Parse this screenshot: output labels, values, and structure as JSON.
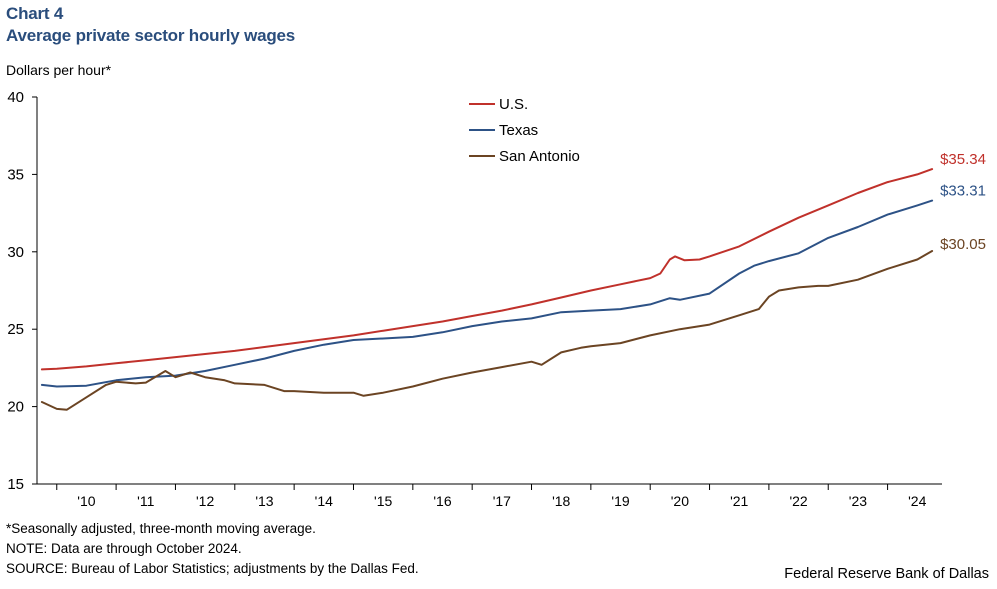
{
  "header": {
    "chart_label": "Chart 4",
    "title": "Average private sector hourly wages",
    "y_unit": "Dollars per hour*"
  },
  "footnotes": {
    "note1": "*Seasonally adjusted, three-month moving average.",
    "note2": "NOTE: Data are through October 2024.",
    "source": "SOURCE: Bureau of Labor Statistics; adjustments by the Dallas Fed."
  },
  "credit": "Federal Reserve Bank of Dallas",
  "colors": {
    "us": "#c0312b",
    "texas": "#2d5286",
    "san_antonio": "#6b4423",
    "axis": "#000000"
  },
  "chart_data": {
    "type": "line",
    "title": "Average private sector hourly wages",
    "xlabel": "",
    "ylabel": "Dollars per hour*",
    "ylim": [
      15,
      40
    ],
    "yticks": [
      15,
      20,
      25,
      30,
      35,
      40
    ],
    "xlim": [
      2009.667,
      2024.917
    ],
    "x_ticks": [
      {
        "label": "'10",
        "at": 2010.5
      },
      {
        "label": "'11",
        "at": 2011.5
      },
      {
        "label": "'12",
        "at": 2012.5
      },
      {
        "label": "'13",
        "at": 2013.5
      },
      {
        "label": "'14",
        "at": 2014.5
      },
      {
        "label": "'15",
        "at": 2015.5
      },
      {
        "label": "'16",
        "at": 2016.5
      },
      {
        "label": "'17",
        "at": 2017.5
      },
      {
        "label": "'18",
        "at": 2018.5
      },
      {
        "label": "'19",
        "at": 2019.5
      },
      {
        "label": "'20",
        "at": 2020.5
      },
      {
        "label": "'21",
        "at": 2021.5
      },
      {
        "label": "'22",
        "at": 2022.5
      },
      {
        "label": "'23",
        "at": 2023.5
      },
      {
        "label": "'24",
        "at": 2024.5
      }
    ],
    "legend": {
      "placement": "top-center"
    },
    "series": [
      {
        "name": "U.S.",
        "color_key": "us",
        "end_label": "$35.34",
        "points": [
          [
            2009.75,
            22.4
          ],
          [
            2010.0,
            22.45
          ],
          [
            2010.5,
            22.6
          ],
          [
            2011.0,
            22.8
          ],
          [
            2011.5,
            23.0
          ],
          [
            2012.0,
            23.2
          ],
          [
            2012.5,
            23.4
          ],
          [
            2013.0,
            23.6
          ],
          [
            2013.5,
            23.85
          ],
          [
            2014.0,
            24.1
          ],
          [
            2014.5,
            24.35
          ],
          [
            2015.0,
            24.6
          ],
          [
            2015.5,
            24.9
          ],
          [
            2016.0,
            25.2
          ],
          [
            2016.5,
            25.5
          ],
          [
            2017.0,
            25.85
          ],
          [
            2017.5,
            26.2
          ],
          [
            2018.0,
            26.6
          ],
          [
            2018.5,
            27.05
          ],
          [
            2019.0,
            27.5
          ],
          [
            2019.5,
            27.9
          ],
          [
            2020.0,
            28.3
          ],
          [
            2020.17,
            28.6
          ],
          [
            2020.33,
            29.5
          ],
          [
            2020.42,
            29.7
          ],
          [
            2020.58,
            29.45
          ],
          [
            2020.83,
            29.5
          ],
          [
            2021.0,
            29.7
          ],
          [
            2021.5,
            30.35
          ],
          [
            2022.0,
            31.3
          ],
          [
            2022.5,
            32.2
          ],
          [
            2023.0,
            33.0
          ],
          [
            2023.5,
            33.8
          ],
          [
            2024.0,
            34.5
          ],
          [
            2024.5,
            35.0
          ],
          [
            2024.75,
            35.34
          ]
        ]
      },
      {
        "name": "Texas",
        "color_key": "texas",
        "end_label": "$33.31",
        "points": [
          [
            2009.75,
            21.4
          ],
          [
            2010.0,
            21.3
          ],
          [
            2010.5,
            21.35
          ],
          [
            2011.0,
            21.7
          ],
          [
            2011.5,
            21.9
          ],
          [
            2012.0,
            22.0
          ],
          [
            2012.5,
            22.3
          ],
          [
            2013.0,
            22.7
          ],
          [
            2013.5,
            23.1
          ],
          [
            2014.0,
            23.6
          ],
          [
            2014.5,
            24.0
          ],
          [
            2015.0,
            24.3
          ],
          [
            2015.5,
            24.4
          ],
          [
            2016.0,
            24.5
          ],
          [
            2016.5,
            24.8
          ],
          [
            2017.0,
            25.2
          ],
          [
            2017.5,
            25.5
          ],
          [
            2018.0,
            25.7
          ],
          [
            2018.5,
            26.1
          ],
          [
            2019.0,
            26.2
          ],
          [
            2019.5,
            26.3
          ],
          [
            2020.0,
            26.6
          ],
          [
            2020.33,
            27.0
          ],
          [
            2020.5,
            26.9
          ],
          [
            2021.0,
            27.3
          ],
          [
            2021.5,
            28.6
          ],
          [
            2021.75,
            29.1
          ],
          [
            2022.0,
            29.4
          ],
          [
            2022.5,
            29.9
          ],
          [
            2023.0,
            30.9
          ],
          [
            2023.5,
            31.6
          ],
          [
            2024.0,
            32.4
          ],
          [
            2024.5,
            33.0
          ],
          [
            2024.75,
            33.31
          ]
        ]
      },
      {
        "name": "San Antonio",
        "color_key": "san_antonio",
        "end_label": "$30.05",
        "points": [
          [
            2009.75,
            20.3
          ],
          [
            2010.0,
            19.85
          ],
          [
            2010.17,
            19.8
          ],
          [
            2010.5,
            20.6
          ],
          [
            2010.83,
            21.4
          ],
          [
            2011.0,
            21.6
          ],
          [
            2011.33,
            21.5
          ],
          [
            2011.5,
            21.55
          ],
          [
            2011.83,
            22.3
          ],
          [
            2012.0,
            21.9
          ],
          [
            2012.25,
            22.2
          ],
          [
            2012.5,
            21.9
          ],
          [
            2012.83,
            21.7
          ],
          [
            2013.0,
            21.5
          ],
          [
            2013.5,
            21.4
          ],
          [
            2013.83,
            21.0
          ],
          [
            2014.0,
            21.0
          ],
          [
            2014.5,
            20.9
          ],
          [
            2015.0,
            20.9
          ],
          [
            2015.17,
            20.7
          ],
          [
            2015.5,
            20.9
          ],
          [
            2016.0,
            21.3
          ],
          [
            2016.5,
            21.8
          ],
          [
            2017.0,
            22.2
          ],
          [
            2017.5,
            22.55
          ],
          [
            2018.0,
            22.9
          ],
          [
            2018.17,
            22.7
          ],
          [
            2018.5,
            23.5
          ],
          [
            2018.83,
            23.8
          ],
          [
            2019.0,
            23.9
          ],
          [
            2019.5,
            24.1
          ],
          [
            2020.0,
            24.6
          ],
          [
            2020.5,
            25.0
          ],
          [
            2021.0,
            25.3
          ],
          [
            2021.5,
            25.9
          ],
          [
            2021.83,
            26.3
          ],
          [
            2022.0,
            27.1
          ],
          [
            2022.17,
            27.5
          ],
          [
            2022.5,
            27.7
          ],
          [
            2022.83,
            27.8
          ],
          [
            2023.0,
            27.8
          ],
          [
            2023.5,
            28.2
          ],
          [
            2024.0,
            28.9
          ],
          [
            2024.5,
            29.5
          ],
          [
            2024.75,
            30.05
          ]
        ]
      }
    ]
  }
}
